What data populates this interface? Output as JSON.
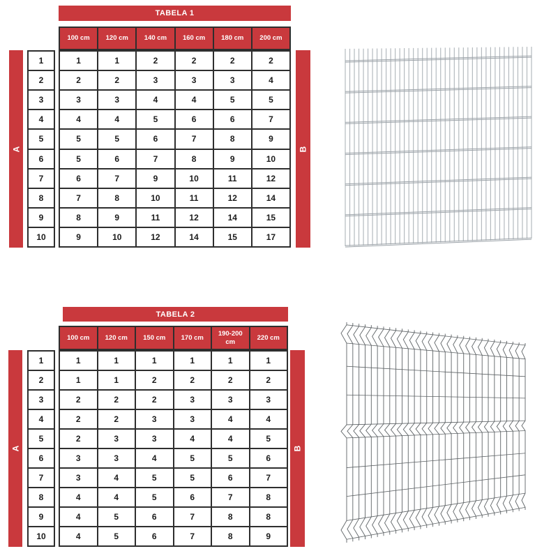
{
  "page": {
    "background": "#ffffff"
  },
  "colors": {
    "accent_red": "#C9393D",
    "grid_border": "#2e2e2e",
    "cell_text": "#1b1b1b",
    "header_text": "#ffffff",
    "wire_2d_panel": "#9aa1a7",
    "wire_3d_panel": "#5e6366"
  },
  "tables": [
    {
      "title": "TABELA 1",
      "left_band": "A",
      "right_band": "B",
      "columns": [
        "100 cm",
        "120 cm",
        "140 cm",
        "160 cm",
        "180 cm",
        "200 cm"
      ],
      "row_numbers": [
        "1",
        "2",
        "3",
        "4",
        "5",
        "6",
        "7",
        "8",
        "9",
        "10"
      ],
      "rows": [
        [
          "1",
          "1",
          "2",
          "2",
          "2",
          "2"
        ],
        [
          "2",
          "2",
          "3",
          "3",
          "3",
          "4"
        ],
        [
          "3",
          "3",
          "4",
          "4",
          "5",
          "5"
        ],
        [
          "4",
          "4",
          "5",
          "6",
          "6",
          "7"
        ],
        [
          "5",
          "5",
          "6",
          "7",
          "8",
          "9"
        ],
        [
          "5",
          "6",
          "7",
          "8",
          "9",
          "10"
        ],
        [
          "6",
          "7",
          "9",
          "10",
          "11",
          "12"
        ],
        [
          "7",
          "8",
          "10",
          "11",
          "12",
          "14"
        ],
        [
          "8",
          "9",
          "11",
          "12",
          "14",
          "15"
        ],
        [
          "9",
          "10",
          "12",
          "14",
          "15",
          "17"
        ]
      ]
    },
    {
      "title": "TABELA 2",
      "left_band": "A",
      "right_band": "B",
      "columns": [
        "100 cm",
        "120 cm",
        "150 cm",
        "170 cm",
        "190-200 cm",
        "220 cm"
      ],
      "row_numbers": [
        "1",
        "2",
        "3",
        "4",
        "5",
        "6",
        "7",
        "8",
        "9",
        "10"
      ],
      "rows": [
        [
          "1",
          "1",
          "1",
          "1",
          "1",
          "1"
        ],
        [
          "1",
          "1",
          "2",
          "2",
          "2",
          "2"
        ],
        [
          "2",
          "2",
          "2",
          "3",
          "3",
          "3"
        ],
        [
          "2",
          "2",
          "3",
          "3",
          "4",
          "4"
        ],
        [
          "2",
          "3",
          "3",
          "4",
          "4",
          "5"
        ],
        [
          "3",
          "3",
          "4",
          "5",
          "5",
          "6"
        ],
        [
          "3",
          "4",
          "5",
          "5",
          "6",
          "7"
        ],
        [
          "4",
          "4",
          "5",
          "6",
          "7",
          "8"
        ],
        [
          "4",
          "5",
          "6",
          "7",
          "8",
          "8"
        ],
        [
          "4",
          "5",
          "6",
          "7",
          "8",
          "9"
        ]
      ]
    }
  ],
  "figures": [
    {
      "name": "double-wire-2d-fence-panel"
    },
    {
      "name": "bent-3d-fence-panel"
    }
  ]
}
